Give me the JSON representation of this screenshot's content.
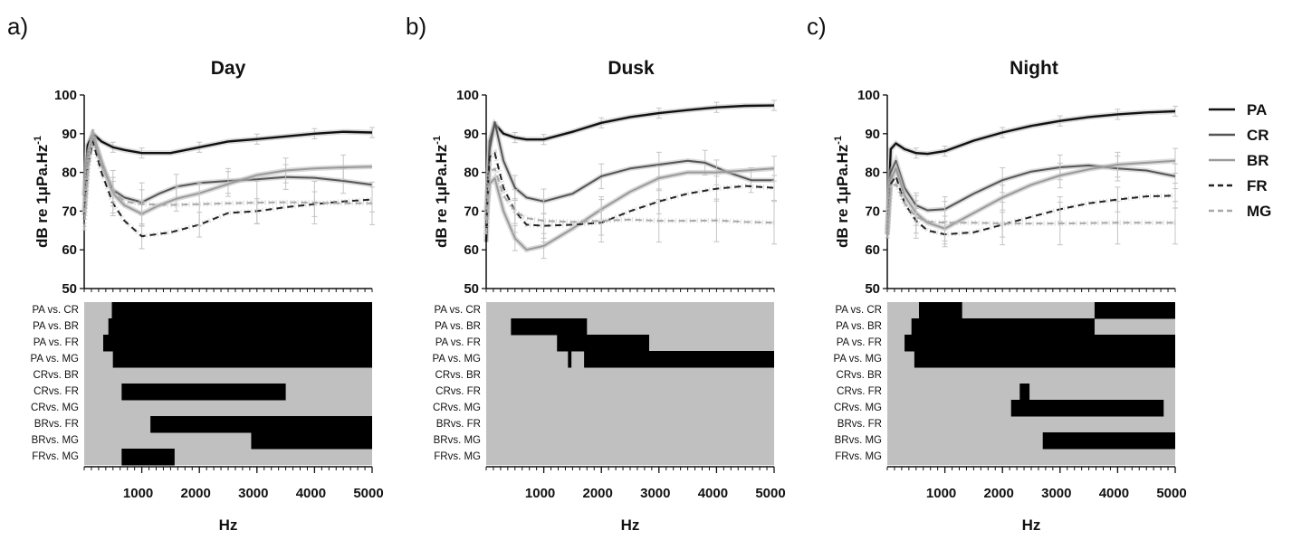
{
  "legend": {
    "items": [
      {
        "name": "PA",
        "color": "#111111",
        "dash": false
      },
      {
        "name": "CR",
        "color": "#555555",
        "dash": false
      },
      {
        "name": "BR",
        "color": "#9a9a9a",
        "dash": false
      },
      {
        "name": "FR",
        "color": "#222222",
        "dash": true
      },
      {
        "name": "MG",
        "color": "#a8a8a8",
        "dash": true
      }
    ]
  },
  "chart_data": [
    {
      "type": "line",
      "panel_letter": "a)",
      "title": "Day",
      "xlabel": "Hz",
      "ylabel": "dB re 1μPa.Hz",
      "ylabel_sup": "-1",
      "xlim": [
        0,
        5000
      ],
      "ylim": [
        50,
        100
      ],
      "xticks": [
        1000,
        2000,
        3000,
        4000,
        5000
      ],
      "yticks": [
        50,
        60,
        70,
        80,
        90,
        100
      ],
      "series": [
        {
          "name": "PA",
          "x": [
            0,
            60,
            150,
            300,
            500,
            700,
            1000,
            1500,
            2000,
            2500,
            3000,
            3500,
            4000,
            4500,
            5000
          ],
          "y": [
            74,
            87,
            90,
            88,
            86.5,
            85.8,
            85,
            85,
            86.5,
            88,
            88.6,
            89.3,
            90,
            90.5,
            90.3
          ]
        },
        {
          "name": "CR",
          "x": [
            0,
            60,
            150,
            300,
            500,
            700,
            1000,
            1300,
            1600,
            2000,
            2500,
            3000,
            3500,
            4000,
            4500,
            5000
          ],
          "y": [
            70,
            84,
            89,
            82,
            75.5,
            73.5,
            72.3,
            74.5,
            76.3,
            77.3,
            77.8,
            78.2,
            78.8,
            78.6,
            77.8,
            76.8
          ]
        },
        {
          "name": "BR",
          "x": [
            0,
            60,
            150,
            300,
            500,
            700,
            1000,
            1300,
            1600,
            2000,
            2500,
            3000,
            3500,
            4000,
            4500,
            5000
          ],
          "y": [
            69,
            82,
            90,
            83,
            74.5,
            71.5,
            69.3,
            71.5,
            73.2,
            74.6,
            77,
            79.3,
            80.5,
            81,
            81.3,
            81.5
          ]
        },
        {
          "name": "FR",
          "x": [
            0,
            60,
            150,
            300,
            500,
            700,
            1000,
            1500,
            2000,
            2500,
            3000,
            3500,
            4000,
            4500,
            5000
          ],
          "y": [
            68,
            81,
            88,
            80,
            72,
            67.5,
            63.5,
            64.5,
            66.5,
            69.5,
            70,
            71,
            71.8,
            72.5,
            73
          ]
        },
        {
          "name": "MG",
          "x": [
            0,
            60,
            150,
            300,
            500,
            700,
            1000,
            1500,
            2000,
            2500,
            3000,
            3500,
            4000,
            4500,
            5000
          ],
          "y": [
            65,
            80,
            91,
            82,
            75,
            72.5,
            71.8,
            71.6,
            71.8,
            72,
            72.2,
            72.3,
            72.2,
            72,
            72
          ]
        }
      ],
      "comparisons": {
        "rows": [
          "PA vs. CR",
          "PA vs. BR",
          "PA vs. FR",
          "PA vs. MG",
          "CRvs. BR",
          "CRvs. FR",
          "CRvs. MG",
          "BRvs. FR",
          "BRvs. MG",
          "FRvs. MG"
        ],
        "significant": [
          [
            [
              480,
              5000
            ]
          ],
          [
            [
              420,
              5000
            ]
          ],
          [
            [
              330,
              5000
            ]
          ],
          [
            [
              500,
              800
            ],
            [
              500,
              5000
            ]
          ],
          [],
          [
            [
              650,
              3500
            ]
          ],
          [],
          [
            [
              1150,
              5000
            ]
          ],
          [
            [
              2900,
              5000
            ]
          ],
          [
            [
              650,
              1570
            ]
          ]
        ]
      }
    },
    {
      "type": "line",
      "panel_letter": "b)",
      "title": "Dusk",
      "xlabel": "Hz",
      "ylabel": "dB re 1μPa.Hz",
      "ylabel_sup": "-1",
      "xlim": [
        0,
        5000
      ],
      "ylim": [
        50,
        100
      ],
      "xticks": [
        1000,
        2000,
        3000,
        4000,
        5000
      ],
      "yticks": [
        50,
        60,
        70,
        80,
        90,
        100
      ],
      "series": [
        {
          "name": "PA",
          "x": [
            0,
            60,
            150,
            300,
            500,
            700,
            1000,
            1500,
            2000,
            2500,
            3000,
            3500,
            4000,
            4500,
            5000
          ],
          "y": [
            62,
            88,
            92.5,
            90,
            89,
            88.5,
            88.5,
            90.5,
            92.8,
            94.3,
            95.3,
            96.1,
            96.8,
            97.2,
            97.3
          ]
        },
        {
          "name": "CR",
          "x": [
            0,
            60,
            150,
            300,
            500,
            700,
            1000,
            1500,
            2000,
            2500,
            3000,
            3500,
            3800,
            4200,
            4600,
            5000
          ],
          "y": [
            70,
            86,
            93,
            83,
            76,
            73.5,
            72.5,
            74.5,
            79,
            81,
            82,
            83,
            82.5,
            80,
            78,
            78
          ]
        },
        {
          "name": "BR",
          "x": [
            0,
            60,
            150,
            300,
            500,
            700,
            1000,
            1500,
            2000,
            2500,
            3000,
            3500,
            4000,
            4500,
            5000
          ],
          "y": [
            68,
            77,
            78.5,
            70,
            63,
            60,
            61,
            65.5,
            70.5,
            75,
            78.5,
            80,
            80,
            80.5,
            81
          ]
        },
        {
          "name": "FR",
          "x": [
            0,
            60,
            150,
            300,
            500,
            700,
            1000,
            1500,
            2000,
            2500,
            3000,
            3500,
            4000,
            4500,
            5000
          ],
          "y": [
            66,
            84,
            85,
            76,
            70,
            66.5,
            66.2,
            66.5,
            67,
            70,
            72.5,
            74.5,
            75.8,
            76.5,
            76
          ]
        },
        {
          "name": "MG",
          "x": [
            0,
            60,
            150,
            300,
            500,
            700,
            1000,
            1500,
            2000,
            2500,
            3000,
            3500,
            4000,
            4500,
            5000
          ],
          "y": [
            64,
            80,
            81,
            74,
            70,
            68.2,
            67.5,
            67.2,
            67.5,
            67.8,
            67.5,
            67.5,
            67.6,
            67.2,
            67
          ]
        }
      ],
      "comparisons": {
        "rows": [
          "PA vs. CR",
          "PA vs. BR",
          "PA vs. FR",
          "PA vs. MG",
          "CRvs. BR",
          "CRvs. FR",
          "CRvs. MG",
          "BRvs. FR",
          "BRvs. MG",
          "FRvs. MG"
        ],
        "significant": [
          [],
          [
            [
              430,
              1750
            ]
          ],
          [
            [
              1230,
              2830
            ]
          ],
          [
            [
              1420,
              1480
            ],
            [
              1700,
              5000
            ]
          ],
          [],
          [],
          [],
          [],
          [],
          []
        ]
      }
    },
    {
      "type": "line",
      "panel_letter": "c)",
      "title": "Night",
      "xlabel": "Hz",
      "ylabel": "dB re 1μPa.Hz",
      "ylabel_sup": "-1",
      "xlim": [
        0,
        5000
      ],
      "ylim": [
        50,
        100
      ],
      "xticks": [
        1000,
        2000,
        3000,
        4000,
        5000
      ],
      "yticks": [
        50,
        60,
        70,
        80,
        90,
        100
      ],
      "series": [
        {
          "name": "PA",
          "x": [
            0,
            60,
            150,
            300,
            500,
            700,
            1000,
            1500,
            2000,
            2500,
            3000,
            3500,
            4000,
            4500,
            5000
          ],
          "y": [
            64,
            86,
            87.5,
            86,
            85,
            84.8,
            85.5,
            88.2,
            90.3,
            92,
            93.3,
            94.3,
            95,
            95.5,
            95.8
          ]
        },
        {
          "name": "CR",
          "x": [
            0,
            60,
            150,
            300,
            500,
            700,
            1000,
            1500,
            2000,
            2500,
            3000,
            3500,
            4000,
            4500,
            5000
          ],
          "y": [
            65,
            80,
            83,
            76,
            71.5,
            70.2,
            70.5,
            74.5,
            78,
            80.2,
            81.3,
            81.8,
            81,
            80.5,
            79
          ]
        },
        {
          "name": "BR",
          "x": [
            0,
            60,
            150,
            300,
            500,
            700,
            1000,
            1500,
            2000,
            2500,
            3000,
            3500,
            4000,
            4500,
            5000
          ],
          "y": [
            64,
            78,
            81,
            74,
            69.5,
            67,
            65.5,
            69.5,
            73.5,
            76.8,
            79.2,
            80.8,
            82,
            82.5,
            83
          ]
        },
        {
          "name": "FR",
          "x": [
            0,
            60,
            150,
            300,
            500,
            700,
            1000,
            1500,
            2000,
            2500,
            3000,
            3500,
            4000,
            4500,
            5000
          ],
          "y": [
            63,
            77,
            79,
            72,
            67.5,
            65,
            64,
            64.5,
            66.5,
            68.5,
            70.5,
            72,
            73,
            73.8,
            74
          ]
        },
        {
          "name": "MG",
          "x": [
            0,
            60,
            150,
            300,
            500,
            700,
            1000,
            1500,
            2000,
            2500,
            3000,
            3500,
            4000,
            4500,
            5000
          ],
          "y": [
            63,
            76,
            77,
            72,
            68.5,
            67.3,
            67,
            67,
            66.8,
            66.8,
            66.8,
            66.9,
            67,
            67,
            67
          ]
        }
      ],
      "comparisons": {
        "rows": [
          "PA vs. CR",
          "PA vs. BR",
          "PA vs. FR",
          "PA vs. MG",
          "CRvs. BR",
          "CRvs. FR",
          "CRvs. MG",
          "BRvs. FR",
          "BRvs. MG",
          "FRvs. MG"
        ],
        "significant": [
          [
            [
              550,
              1300
            ],
            [
              3600,
              5000
            ]
          ],
          [
            [
              420,
              3600
            ]
          ],
          [
            [
              300,
              5000
            ]
          ],
          [
            [
              470,
              5000
            ]
          ],
          [],
          [
            [
              2300,
              2470
            ]
          ],
          [
            [
              2150,
              4800
            ]
          ],
          [],
          [
            [
              2700,
              5000
            ]
          ],
          []
        ]
      }
    }
  ]
}
